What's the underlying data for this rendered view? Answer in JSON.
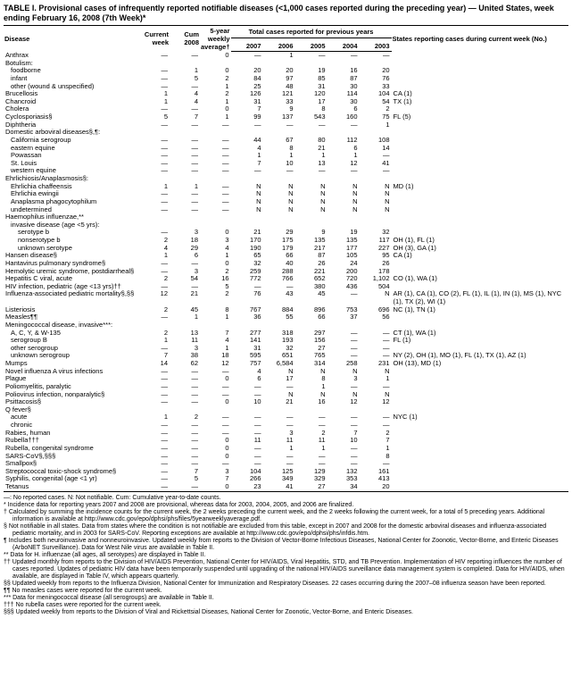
{
  "title": "TABLE I. Provisional cases of infrequently reported notifiable diseases (<1,000 cases reported during the preceding year) — United States, week ending February 16, 2008 (7th Week)*",
  "headers": {
    "disease": "Disease",
    "current_week": "Current week",
    "cum_2008": "Cum 2008",
    "avg": "5-year weekly average†",
    "prev_years_span": "Total cases reported for previous years",
    "y2007": "2007",
    "y2006": "2006",
    "y2005": "2005",
    "y2004": "2004",
    "y2003": "2003",
    "states": "States reporting cases during current week (No.)"
  },
  "rows": [
    {
      "d": "Anthrax",
      "i": 0,
      "c": [
        "—",
        "—",
        "0",
        "—",
        "1",
        "—",
        "—",
        "—",
        ""
      ]
    },
    {
      "d": "Botulism:",
      "i": 0,
      "c": [
        "",
        "",
        "",
        "",
        "",
        "",
        "",
        "",
        ""
      ]
    },
    {
      "d": "foodborne",
      "i": 1,
      "c": [
        "—",
        "1",
        "0",
        "20",
        "20",
        "19",
        "16",
        "20",
        ""
      ]
    },
    {
      "d": "infant",
      "i": 1,
      "c": [
        "—",
        "5",
        "2",
        "84",
        "97",
        "85",
        "87",
        "76",
        ""
      ]
    },
    {
      "d": "other (wound & unspecified)",
      "i": 1,
      "c": [
        "—",
        "—",
        "1",
        "25",
        "48",
        "31",
        "30",
        "33",
        ""
      ]
    },
    {
      "d": "Brucellosis",
      "i": 0,
      "c": [
        "1",
        "4",
        "2",
        "126",
        "121",
        "120",
        "114",
        "104",
        "CA (1)"
      ]
    },
    {
      "d": "Chancroid",
      "i": 0,
      "c": [
        "1",
        "4",
        "1",
        "31",
        "33",
        "17",
        "30",
        "54",
        "TX (1)"
      ]
    },
    {
      "d": "Cholera",
      "i": 0,
      "c": [
        "—",
        "—",
        "0",
        "7",
        "9",
        "8",
        "6",
        "2",
        ""
      ]
    },
    {
      "d": "Cyclosporiasis§",
      "i": 0,
      "c": [
        "5",
        "7",
        "1",
        "99",
        "137",
        "543",
        "160",
        "75",
        "FL (5)"
      ]
    },
    {
      "d": "Diphtheria",
      "i": 0,
      "c": [
        "—",
        "—",
        "—",
        "—",
        "—",
        "—",
        "—",
        "1",
        ""
      ]
    },
    {
      "d": "Domestic arboviral diseases§,¶:",
      "i": 0,
      "c": [
        "",
        "",
        "",
        "",
        "",
        "",
        "",
        "",
        ""
      ]
    },
    {
      "d": "California serogroup",
      "i": 1,
      "c": [
        "—",
        "—",
        "—",
        "44",
        "67",
        "80",
        "112",
        "108",
        ""
      ]
    },
    {
      "d": "eastern equine",
      "i": 1,
      "c": [
        "—",
        "—",
        "—",
        "4",
        "8",
        "21",
        "6",
        "14",
        ""
      ]
    },
    {
      "d": "Powassan",
      "i": 1,
      "c": [
        "—",
        "—",
        "—",
        "1",
        "1",
        "1",
        "1",
        "—",
        ""
      ]
    },
    {
      "d": "St. Louis",
      "i": 1,
      "c": [
        "—",
        "—",
        "—",
        "7",
        "10",
        "13",
        "12",
        "41",
        ""
      ]
    },
    {
      "d": "western equine",
      "i": 1,
      "c": [
        "—",
        "—",
        "—",
        "—",
        "—",
        "—",
        "—",
        "—",
        ""
      ]
    },
    {
      "d": "Ehrlichiosis/Anaplasmosis§:",
      "i": 0,
      "c": [
        "",
        "",
        "",
        "",
        "",
        "",
        "",
        "",
        ""
      ]
    },
    {
      "d": "Ehrlichia chaffeensis",
      "i": 1,
      "c": [
        "1",
        "1",
        "—",
        "N",
        "N",
        "N",
        "N",
        "N",
        "MD (1)"
      ]
    },
    {
      "d": "Ehrlichia ewingii",
      "i": 1,
      "c": [
        "—",
        "—",
        "—",
        "N",
        "N",
        "N",
        "N",
        "N",
        ""
      ]
    },
    {
      "d": "Anaplasma phagocytophilum",
      "i": 1,
      "c": [
        "—",
        "—",
        "—",
        "N",
        "N",
        "N",
        "N",
        "N",
        ""
      ]
    },
    {
      "d": "undetermined",
      "i": 1,
      "c": [
        "—",
        "—",
        "—",
        "N",
        "N",
        "N",
        "N",
        "N",
        ""
      ]
    },
    {
      "d": "Haemophilus influenzae,**",
      "i": 0,
      "c": [
        "",
        "",
        "",
        "",
        "",
        "",
        "",
        "",
        ""
      ]
    },
    {
      "d": "invasive disease (age <5 yrs):",
      "i": 1,
      "c": [
        "",
        "",
        "",
        "",
        "",
        "",
        "",
        "",
        ""
      ]
    },
    {
      "d": "serotype b",
      "i": 2,
      "c": [
        "—",
        "3",
        "0",
        "21",
        "29",
        "9",
        "19",
        "32",
        ""
      ]
    },
    {
      "d": "nonserotype b",
      "i": 2,
      "c": [
        "2",
        "18",
        "3",
        "170",
        "175",
        "135",
        "135",
        "117",
        "OH (1), FL (1)"
      ]
    },
    {
      "d": "unknown serotype",
      "i": 2,
      "c": [
        "4",
        "29",
        "4",
        "190",
        "179",
        "217",
        "177",
        "227",
        "OH (3), GA (1)"
      ]
    },
    {
      "d": "Hansen disease§",
      "i": 0,
      "c": [
        "1",
        "6",
        "1",
        "65",
        "66",
        "87",
        "105",
        "95",
        "CA (1)"
      ]
    },
    {
      "d": "Hantavirus pulmonary syndrome§",
      "i": 0,
      "c": [
        "—",
        "—",
        "0",
        "32",
        "40",
        "26",
        "24",
        "26",
        ""
      ]
    },
    {
      "d": "Hemolytic uremic syndrome, postdiarrheal§",
      "i": 0,
      "c": [
        "—",
        "3",
        "2",
        "259",
        "288",
        "221",
        "200",
        "178",
        ""
      ]
    },
    {
      "d": "Hepatitis C viral, acute",
      "i": 0,
      "c": [
        "2",
        "54",
        "16",
        "772",
        "766",
        "652",
        "720",
        "1,102",
        "CO (1), WA (1)"
      ]
    },
    {
      "d": "HIV infection, pediatric (age <13 yrs)††",
      "i": 0,
      "c": [
        "—",
        "—",
        "5",
        "—",
        "—",
        "380",
        "436",
        "504",
        ""
      ]
    },
    {
      "d": "Influenza-associated pediatric mortality§,§§",
      "i": 0,
      "c": [
        "12",
        "21",
        "2",
        "76",
        "43",
        "45",
        "—",
        "N",
        "AR (1), CA (1), CO (2), FL (1), IL (1), IN (1), MS (1), NYC (1), TX (2), WI (1)"
      ]
    },
    {
      "d": "Listeriosis",
      "i": 0,
      "c": [
        "2",
        "45",
        "8",
        "767",
        "884",
        "896",
        "753",
        "696",
        "NC (1), TN (1)"
      ]
    },
    {
      "d": "Measles¶¶",
      "i": 0,
      "c": [
        "—",
        "1",
        "1",
        "36",
        "55",
        "66",
        "37",
        "56",
        ""
      ]
    },
    {
      "d": "Meningococcal disease, invasive***:",
      "i": 0,
      "c": [
        "",
        "",
        "",
        "",
        "",
        "",
        "",
        "",
        ""
      ]
    },
    {
      "d": "A, C, Y, & W-135",
      "i": 1,
      "c": [
        "2",
        "13",
        "7",
        "277",
        "318",
        "297",
        "—",
        "—",
        "CT (1), WA (1)"
      ]
    },
    {
      "d": "serogroup B",
      "i": 1,
      "c": [
        "1",
        "11",
        "4",
        "141",
        "193",
        "156",
        "—",
        "—",
        "FL (1)"
      ]
    },
    {
      "d": "other serogroup",
      "i": 1,
      "c": [
        "—",
        "3",
        "1",
        "31",
        "32",
        "27",
        "—",
        "—",
        ""
      ]
    },
    {
      "d": "unknown serogroup",
      "i": 1,
      "c": [
        "7",
        "38",
        "18",
        "595",
        "651",
        "765",
        "—",
        "—",
        "NY (2), OH (1), MO (1), FL (1), TX (1), AZ (1)"
      ]
    },
    {
      "d": "Mumps",
      "i": 0,
      "c": [
        "14",
        "62",
        "12",
        "757",
        "6,584",
        "314",
        "258",
        "231",
        "OH (13), MD (1)"
      ]
    },
    {
      "d": "Novel influenza A virus infections",
      "i": 0,
      "c": [
        "—",
        "—",
        "—",
        "4",
        "N",
        "N",
        "N",
        "N",
        ""
      ]
    },
    {
      "d": "Plague",
      "i": 0,
      "c": [
        "—",
        "—",
        "0",
        "6",
        "17",
        "8",
        "3",
        "1",
        ""
      ]
    },
    {
      "d": "Poliomyelitis, paralytic",
      "i": 0,
      "c": [
        "—",
        "—",
        "—",
        "—",
        "—",
        "1",
        "—",
        "—",
        ""
      ]
    },
    {
      "d": "Poliovirus infection, nonparalytic§",
      "i": 0,
      "c": [
        "—",
        "—",
        "—",
        "—",
        "N",
        "N",
        "N",
        "N",
        ""
      ]
    },
    {
      "d": "Psittacosis§",
      "i": 0,
      "c": [
        "—",
        "—",
        "0",
        "10",
        "21",
        "16",
        "12",
        "12",
        ""
      ]
    },
    {
      "d": "Q fever§",
      "i": 0,
      "c": [
        "",
        "",
        "",
        "",
        "",
        "",
        "",
        "",
        ""
      ]
    },
    {
      "d": "acute",
      "i": 1,
      "c": [
        "1",
        "2",
        "—",
        "—",
        "—",
        "—",
        "—",
        "—",
        "NYC (1)"
      ]
    },
    {
      "d": "chronic",
      "i": 1,
      "c": [
        "—",
        "—",
        "—",
        "—",
        "—",
        "—",
        "—",
        "—",
        ""
      ]
    },
    {
      "d": "Rabies, human",
      "i": 0,
      "c": [
        "—",
        "—",
        "—",
        "—",
        "3",
        "2",
        "7",
        "2",
        ""
      ]
    },
    {
      "d": "Rubella†††",
      "i": 0,
      "c": [
        "—",
        "—",
        "0",
        "11",
        "11",
        "11",
        "10",
        "7",
        ""
      ]
    },
    {
      "d": "Rubella, congenital syndrome",
      "i": 0,
      "c": [
        "—",
        "—",
        "0",
        "—",
        "1",
        "1",
        "—",
        "1",
        ""
      ]
    },
    {
      "d": "SARS-CoV§,§§§",
      "i": 0,
      "c": [
        "—",
        "—",
        "0",
        "—",
        "—",
        "—",
        "—",
        "8",
        ""
      ]
    },
    {
      "d": "Smallpox§",
      "i": 0,
      "c": [
        "—",
        "—",
        "—",
        "—",
        "—",
        "—",
        "—",
        "—",
        ""
      ]
    },
    {
      "d": "Streptococcal toxic-shock syndrome§",
      "i": 0,
      "c": [
        "—",
        "7",
        "3",
        "104",
        "125",
        "129",
        "132",
        "161",
        ""
      ]
    },
    {
      "d": "Syphilis, congenital (age <1 yr)",
      "i": 0,
      "c": [
        "—",
        "5",
        "7",
        "266",
        "349",
        "329",
        "353",
        "413",
        ""
      ]
    },
    {
      "d": "Tetanus",
      "i": 0,
      "c": [
        "—",
        "—",
        "0",
        "23",
        "41",
        "27",
        "34",
        "20",
        ""
      ]
    }
  ],
  "footnotes": [
    "—: No reported cases.    N: Not notifiable.    Cum: Cumulative year-to-date counts.",
    "* Incidence data for reporting years 2007 and 2008 are provisional, whereas data for 2003, 2004, 2005, and 2006 are finalized.",
    "† Calculated by summing the incidence counts for the current week, the 2 weeks preceding the current week, and the 2 weeks following the current week, for a total of 5 preceding years. Additional information is available at http://www.cdc.gov/epo/dphsi/phs/files/5yearweeklyaverage.pdf.",
    "§ Not notifiable in all states. Data from states where the condition is not notifiable are excluded from this table, except in 2007 and 2008 for the domestic arboviral diseases and influenza-associated pediatric mortality, and in 2003 for SARS-CoV. Reporting exceptions are available at http://www.cdc.gov/epo/dphsi/phs/infdis.htm.",
    "¶ Includes both neuroinvasive and nonneuroinvasive. Updated weekly from reports to the Division of Vector-Borne Infectious Diseases, National Center for Zoonotic, Vector-Borne, and Enteric Diseases (ArboNET Surveillance). Data for West Nile virus are available in Table II.",
    "** Data for H. influenzae (all ages, all serotypes) are displayed in Table II.",
    "†† Updated monthly from reports to the Division of HIV/AIDS Prevention, National Center for HIV/AIDS, Viral Hepatitis, STD, and TB Prevention. Implementation of HIV reporting influences the number of cases reported. Updates of pediatric HIV data have been temporarily suspended until upgrading of the national HIV/AIDS surveillance data management system is completed. Data for HIV/AIDS, when available, are displayed in Table IV, which appears quarterly.",
    "§§ Updated weekly from reports to the Influenza Division, National Center for Immunization and Respiratory Diseases. 22 cases occurring during the 2007–08 influenza season have been reported.",
    "¶¶ No measles cases were reported for the current week.",
    "*** Data for meningococcal disease (all serogroups) are available in Table II.",
    "††† No rubella cases were reported for the current week.",
    "§§§ Updated weekly from reports to the Division of Viral and Rickettsial Diseases, National Center for Zoonotic, Vector-Borne, and Enteric Diseases."
  ]
}
